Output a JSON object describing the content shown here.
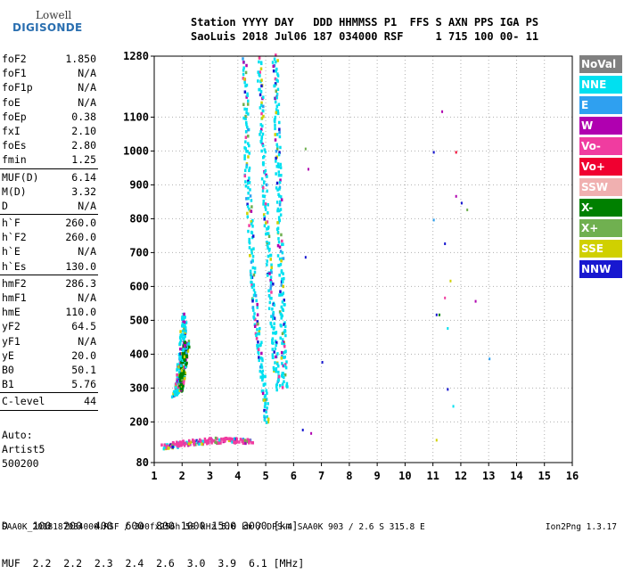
{
  "logo": {
    "brand": "Lowell",
    "product": "DIGISONDE"
  },
  "header": {
    "line1": "Station YYYY DAY   DDD HHMMSS P1  FFS S AXN PPS IGA PS",
    "line2": "SaoLuis 2018 Jul06 187 034000 RSF     1 715 100 00- 11"
  },
  "params": {
    "group1": [
      {
        "name": "foF2",
        "value": "1.850"
      },
      {
        "name": "foF1",
        "value": "N/A"
      },
      {
        "name": "foF1p",
        "value": "N/A"
      },
      {
        "name": "foE",
        "value": "N/A"
      },
      {
        "name": "foEp",
        "value": "0.38"
      },
      {
        "name": "fxI",
        "value": "2.10"
      },
      {
        "name": "foEs",
        "value": "2.80"
      },
      {
        "name": "fmin",
        "value": "1.25"
      }
    ],
    "group2": [
      {
        "name": "MUF(D)",
        "value": "6.14"
      },
      {
        "name": "M(D)",
        "value": "3.32"
      },
      {
        "name": "D",
        "value": "N/A"
      }
    ],
    "group3": [
      {
        "name": "h`F",
        "value": "260.0"
      },
      {
        "name": "h`F2",
        "value": "260.0"
      },
      {
        "name": "h`E",
        "value": "N/A"
      },
      {
        "name": "h`Es",
        "value": "130.0"
      }
    ],
    "group4": [
      {
        "name": "hmF2",
        "value": "286.3"
      },
      {
        "name": "hmF1",
        "value": "N/A"
      },
      {
        "name": "hmE",
        "value": "110.0"
      },
      {
        "name": "yF2",
        "value": "64.5"
      },
      {
        "name": "yF1",
        "value": "N/A"
      },
      {
        "name": "yE",
        "value": "20.0"
      },
      {
        "name": "B0",
        "value": "50.1"
      },
      {
        "name": "B1",
        "value": "5.76"
      }
    ],
    "group5": [
      {
        "name": "C-level",
        "value": "44"
      }
    ]
  },
  "auto": {
    "line1": "Auto:",
    "line2": "Artist5",
    "line3": "500200"
  },
  "muf_table": {
    "row1": "D    100  200  400  600  800 1000 1500 3000 [km]",
    "row2": "MUF  2.2  2.2  2.3  2.4  2.6  3.0  3.9  6.1 [MHz]"
  },
  "footer": "SAA0K_2018187034000.RSF / 300fx256h 50 kHz 5.0 km / DPS-4 SAA0K 903 / 2.6 S 315.8 E",
  "version": "Ion2Png 1.3.17",
  "legend": [
    {
      "label": "NoVal",
      "color": "#808080"
    },
    {
      "label": "NNE",
      "color": "#00e0f0"
    },
    {
      "label": "E",
      "color": "#2fa0f0"
    },
    {
      "label": "W",
      "color": "#b000b0"
    },
    {
      "label": "Vo-",
      "color": "#f03ca0"
    },
    {
      "label": "Vo+",
      "color": "#f00030"
    },
    {
      "label": "SSW",
      "color": "#f0b0b0"
    },
    {
      "label": "X-",
      "color": "#008000"
    },
    {
      "label": "X+",
      "color": "#70b050"
    },
    {
      "label": "SSE",
      "color": "#d0d000"
    },
    {
      "label": "NNW",
      "color": "#1818d0"
    }
  ],
  "chart_data": {
    "type": "scatter",
    "xlim": [
      1,
      16
    ],
    "ylim": [
      80,
      1280
    ],
    "x_ticks": [
      1,
      2,
      3,
      4,
      5,
      6,
      7,
      8,
      9,
      10,
      11,
      12,
      13,
      14,
      15,
      16
    ],
    "y_ticks": [
      80,
      200,
      300,
      400,
      500,
      600,
      700,
      800,
      900,
      1000,
      1100,
      1280
    ],
    "grid": true,
    "traces": [
      {
        "name": "O-trace F2",
        "color_key": "NNE",
        "points": [
          [
            1.7,
            285
          ],
          [
            1.8,
            300
          ],
          [
            1.85,
            340
          ],
          [
            1.9,
            380
          ],
          [
            1.95,
            420
          ],
          [
            2.0,
            470
          ],
          [
            2.05,
            520
          ]
        ]
      },
      {
        "name": "X-trace F2",
        "color_key": "X-",
        "points": [
          [
            1.9,
            300
          ],
          [
            1.95,
            330
          ],
          [
            2.0,
            360
          ],
          [
            2.05,
            390
          ],
          [
            2.1,
            420
          ],
          [
            2.15,
            440
          ]
        ]
      },
      {
        "name": "Es layer",
        "color_key": "Vo-",
        "points": [
          [
            1.3,
            130
          ],
          [
            1.6,
            135
          ],
          [
            2.0,
            140
          ],
          [
            2.5,
            145
          ],
          [
            3.0,
            148
          ],
          [
            3.5,
            150
          ],
          [
            4.0,
            150
          ],
          [
            4.5,
            148
          ]
        ]
      },
      {
        "name": "Spread multihop 1",
        "color_key": "NNE",
        "points": [
          [
            4.2,
            1280
          ],
          [
            4.25,
            1100
          ],
          [
            4.3,
            950
          ],
          [
            4.4,
            800
          ],
          [
            4.5,
            650
          ],
          [
            4.6,
            520
          ],
          [
            4.75,
            420
          ],
          [
            4.9,
            300
          ],
          [
            5.0,
            200
          ]
        ]
      },
      {
        "name": "Spread multihop 2",
        "color_key": "NNE",
        "points": [
          [
            4.7,
            1280
          ],
          [
            4.8,
            1120
          ],
          [
            4.9,
            950
          ],
          [
            5.0,
            800
          ],
          [
            5.1,
            650
          ],
          [
            5.2,
            520
          ],
          [
            5.3,
            400
          ],
          [
            5.4,
            300
          ]
        ]
      },
      {
        "name": "Spread multihop 3",
        "color_key": "NNE",
        "points": [
          [
            5.3,
            1280
          ],
          [
            5.35,
            1150
          ],
          [
            5.4,
            1000
          ],
          [
            5.45,
            850
          ],
          [
            5.5,
            700
          ],
          [
            5.55,
            550
          ],
          [
            5.6,
            420
          ],
          [
            5.65,
            300
          ]
        ]
      }
    ],
    "sparse_points": [
      {
        "x": 6.4,
        "y": 1010,
        "color_key": "X+"
      },
      {
        "x": 6.5,
        "y": 950,
        "color_key": "W"
      },
      {
        "x": 6.4,
        "y": 690,
        "color_key": "NNW"
      },
      {
        "x": 6.3,
        "y": 180,
        "color_key": "NNW"
      },
      {
        "x": 6.6,
        "y": 170,
        "color_key": "W"
      },
      {
        "x": 7.0,
        "y": 380,
        "color_key": "NNW"
      },
      {
        "x": 11.0,
        "y": 1000,
        "color_key": "NNW"
      },
      {
        "x": 11.3,
        "y": 1120,
        "color_key": "W"
      },
      {
        "x": 11.1,
        "y": 520,
        "color_key": "NNW"
      },
      {
        "x": 11.4,
        "y": 570,
        "color_key": "Vo-"
      },
      {
        "x": 11.6,
        "y": 620,
        "color_key": "SSE"
      },
      {
        "x": 11.0,
        "y": 800,
        "color_key": "E"
      },
      {
        "x": 11.8,
        "y": 870,
        "color_key": "W"
      },
      {
        "x": 11.2,
        "y": 520,
        "color_key": "X-"
      },
      {
        "x": 11.5,
        "y": 300,
        "color_key": "NNW"
      },
      {
        "x": 12.0,
        "y": 850,
        "color_key": "NNW"
      },
      {
        "x": 11.8,
        "y": 1000,
        "color_key": "Vo+"
      },
      {
        "x": 11.5,
        "y": 480,
        "color_key": "NNE"
      },
      {
        "x": 12.5,
        "y": 560,
        "color_key": "W"
      },
      {
        "x": 13.0,
        "y": 390,
        "color_key": "E"
      },
      {
        "x": 11.7,
        "y": 250,
        "color_key": "NNE"
      },
      {
        "x": 11.1,
        "y": 150,
        "color_key": "SSE"
      },
      {
        "x": 11.4,
        "y": 730,
        "color_key": "NNW"
      },
      {
        "x": 12.2,
        "y": 830,
        "color_key": "X+"
      }
    ]
  }
}
